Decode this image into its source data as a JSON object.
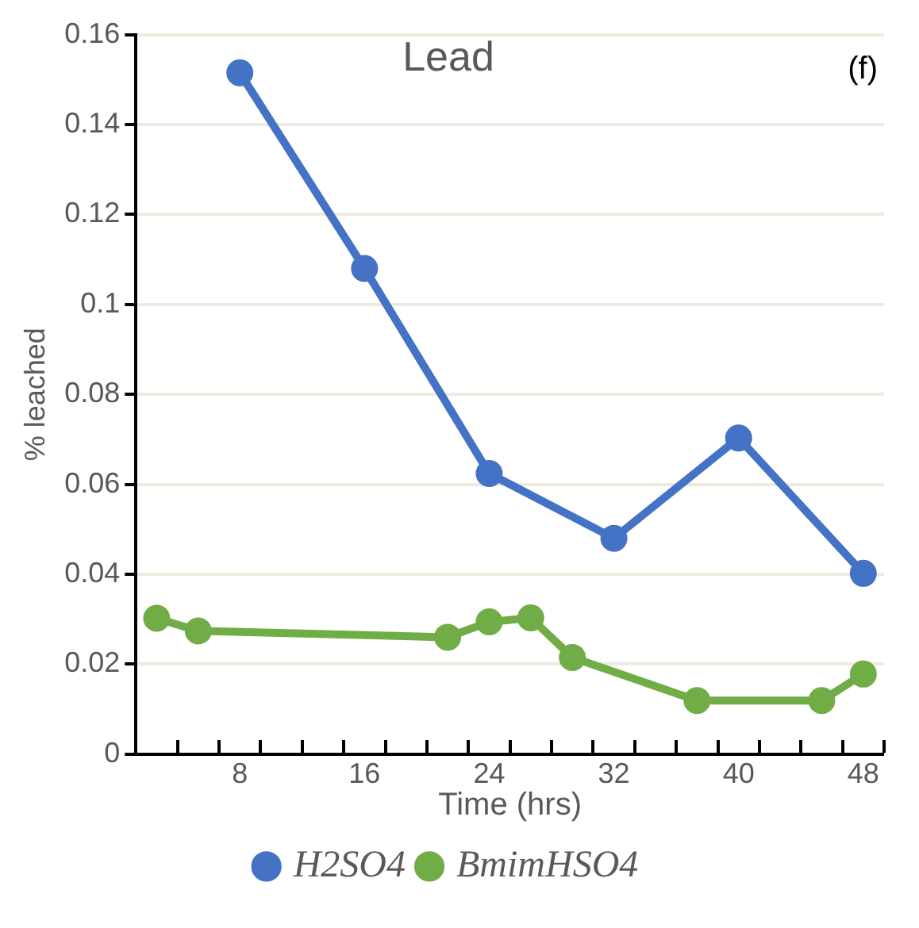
{
  "chart_data": {
    "type": "line",
    "title": "Lead",
    "xlabel": "Time (hrs)",
    "ylabel": "% leached",
    "annotations": [
      "(f)"
    ],
    "categories": [
      null,
      null,
      "8",
      null,
      null,
      "16",
      null,
      null,
      "24",
      null,
      null,
      "32",
      null,
      null,
      "40",
      null,
      null,
      "48"
    ],
    "series": [
      {
        "name": "H2SO4",
        "color": "#4472c4",
        "values": [
          null,
          null,
          0.1515,
          null,
          null,
          0.108,
          null,
          null,
          0.0624,
          null,
          null,
          0.048,
          null,
          null,
          0.0703,
          null,
          null,
          0.0402
        ]
      },
      {
        "name": "BmimHSO4",
        "color": "#70ad47",
        "values": [
          0.0302,
          0.0274,
          null,
          null,
          null,
          null,
          null,
          0.026,
          0.0294,
          0.0303,
          0.0215,
          null,
          null,
          0.0119,
          null,
          null,
          0.0119,
          0.0178
        ]
      }
    ],
    "ylim": [
      0,
      0.16
    ],
    "yticks": [
      0,
      0.02,
      0.04,
      0.06,
      0.08,
      0.1,
      0.12,
      0.14,
      0.16
    ],
    "grid": "y",
    "legend": "bottom",
    "marker": "circle",
    "line_style": "solid"
  }
}
